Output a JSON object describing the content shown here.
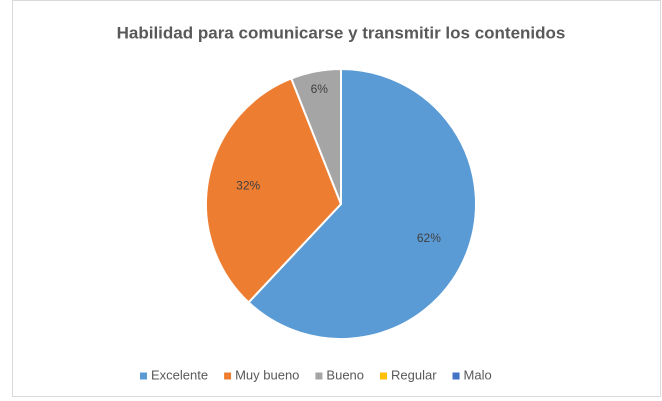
{
  "chart_data": {
    "type": "pie",
    "title": "Habilidad para comunicarse y transmitir los contenidos",
    "categories": [
      "Excelente",
      "Muy bueno",
      "Bueno",
      "Regular",
      "Malo"
    ],
    "values": [
      62,
      32,
      6,
      0,
      0
    ],
    "value_labels": [
      "62%",
      "32%",
      "6%",
      null,
      null
    ],
    "colors": [
      "#5b9bd5",
      "#ed7d31",
      "#a5a5a5",
      "#ffc000",
      "#4472c4"
    ],
    "legend": "bottom"
  }
}
